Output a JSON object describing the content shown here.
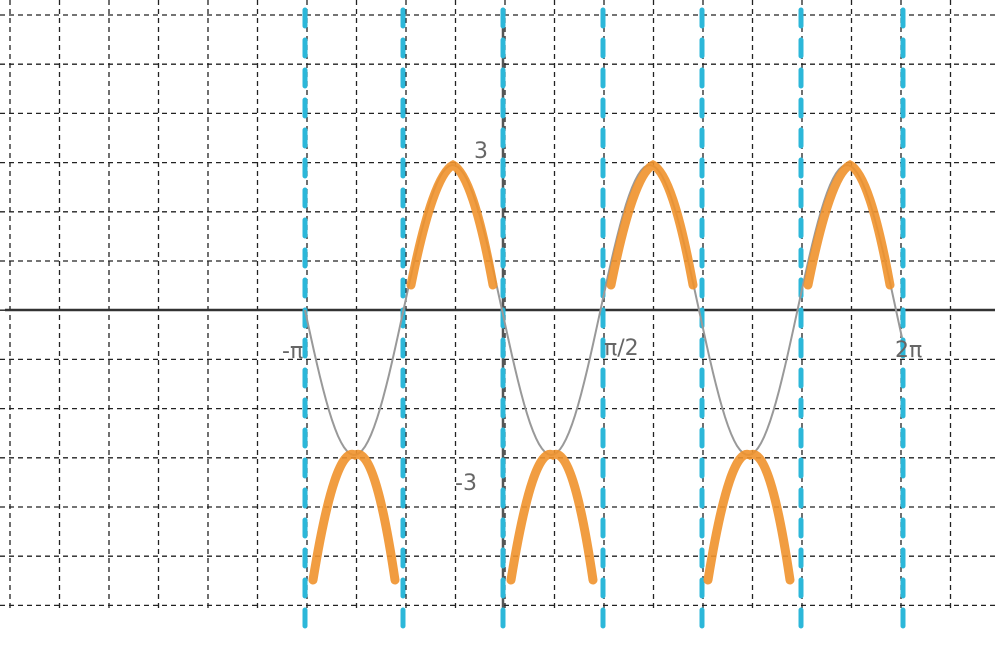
{
  "labels": {
    "y_max": "3",
    "y_min": "-3",
    "x_half_pi": "π/2",
    "x_neg_pi": "-π",
    "x_two_pi": "2π"
  }
}
